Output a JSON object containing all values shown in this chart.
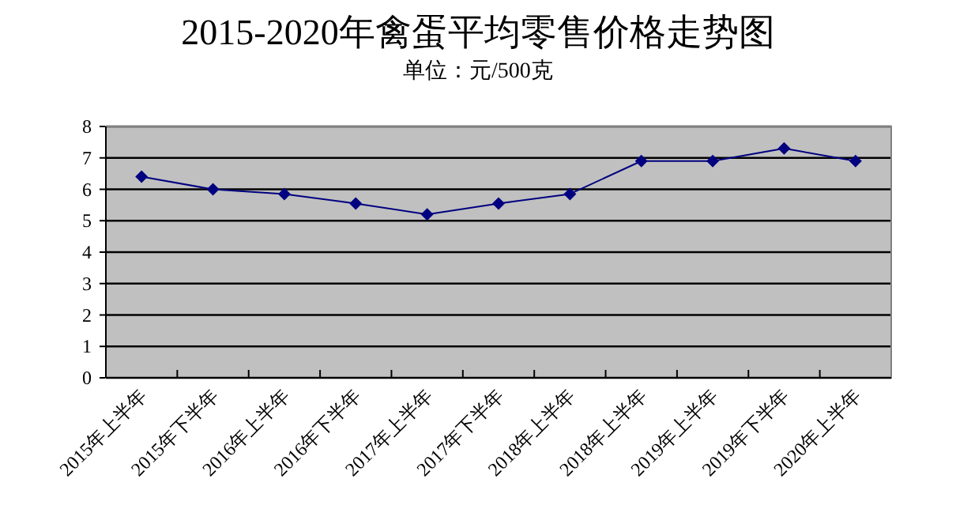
{
  "chart_data": {
    "type": "line",
    "title": "2015-2020年禽蛋平均零售价格走势图",
    "subtitle": "单位：元/500克",
    "categories": [
      "2015年上半年",
      "2015年下半年",
      "2016年上半年",
      "2016年下半年",
      "2017年上半年",
      "2017年下半年",
      "2018年上半年",
      "2018年上半年",
      "2019年上半年",
      "2019年下半年",
      "2020年上半年"
    ],
    "series": [
      {
        "color": "#000080",
        "values": [
          6.4,
          6.0,
          5.85,
          5.55,
          5.2,
          5.55,
          5.85,
          6.9,
          6.9,
          7.3,
          6.9
        ]
      }
    ],
    "ylim": [
      0,
      8
    ],
    "yticks": [
      0,
      1,
      2,
      3,
      4,
      5,
      6,
      7,
      8
    ],
    "grid": "y",
    "marker": "diamond",
    "line_style": "solid"
  }
}
